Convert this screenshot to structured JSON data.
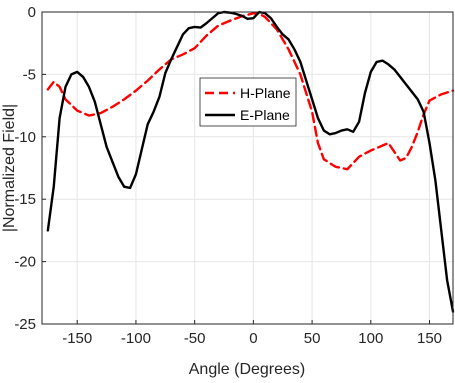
{
  "chart_data": {
    "type": "line",
    "xlabel": "Angle (Degrees)",
    "ylabel": "|Normalized Field|",
    "xlim": [
      -180,
      170
    ],
    "ylim": [
      -25,
      0
    ],
    "xticks": [
      -150,
      -100,
      -50,
      0,
      50,
      100,
      150
    ],
    "yticks": [
      0,
      -5,
      -10,
      -15,
      -20,
      -25
    ],
    "xtick_labels": [
      "-150",
      "-100",
      "-50",
      "0",
      "50",
      "100",
      "150"
    ],
    "ytick_labels": [
      "0",
      "-5",
      "-10",
      "-15",
      "-20",
      "-25"
    ],
    "grid": true,
    "legend_position": "inside-center",
    "series": [
      {
        "name": "H-Plane",
        "color": "#ff0000",
        "dash": "dashed",
        "x": [
          -175,
          -170,
          -165,
          -160,
          -150,
          -140,
          -130,
          -120,
          -110,
          -100,
          -90,
          -80,
          -70,
          -60,
          -50,
          -40,
          -30,
          -20,
          -10,
          0,
          5,
          10,
          20,
          30,
          40,
          50,
          55,
          60,
          70,
          80,
          90,
          100,
          110,
          115,
          120,
          125,
          130,
          135,
          140,
          145,
          150,
          160,
          170
        ],
        "y": [
          -6.2,
          -5.6,
          -6.0,
          -7.0,
          -7.9,
          -8.3,
          -8.1,
          -7.6,
          -7.0,
          -6.3,
          -5.5,
          -4.6,
          -3.8,
          -3.4,
          -2.9,
          -1.9,
          -1.1,
          -0.7,
          -0.35,
          -0.1,
          -0.15,
          -0.4,
          -1.4,
          -3.0,
          -5.0,
          -8.0,
          -10.5,
          -11.8,
          -12.4,
          -12.6,
          -11.6,
          -11.1,
          -10.7,
          -10.5,
          -11.2,
          -11.9,
          -11.7,
          -10.8,
          -9.6,
          -8.2,
          -7.1,
          -6.6,
          -6.3
        ]
      },
      {
        "name": "E-Plane",
        "color": "#000000",
        "dash": "solid",
        "x": [
          -175,
          -170,
          -165,
          -160,
          -155,
          -150,
          -145,
          -140,
          -135,
          -130,
          -125,
          -120,
          -115,
          -110,
          -105,
          -100,
          -95,
          -90,
          -85,
          -80,
          -75,
          -70,
          -65,
          -60,
          -55,
          -50,
          -45,
          -40,
          -35,
          -30,
          -25,
          -20,
          -15,
          -10,
          -5,
          0,
          5,
          10,
          15,
          20,
          25,
          30,
          35,
          40,
          45,
          50,
          55,
          60,
          65,
          70,
          75,
          80,
          85,
          90,
          95,
          100,
          105,
          110,
          115,
          120,
          125,
          130,
          135,
          140,
          145,
          150,
          155,
          160,
          165,
          170
        ],
        "y": [
          -17.5,
          -14.0,
          -8.5,
          -6.0,
          -5.0,
          -4.8,
          -5.2,
          -6.0,
          -7.2,
          -9.0,
          -10.8,
          -12.0,
          -13.2,
          -14.0,
          -14.1,
          -13.0,
          -11.0,
          -9.0,
          -8.0,
          -6.8,
          -4.9,
          -3.8,
          -2.8,
          -1.8,
          -1.3,
          -1.2,
          -1.25,
          -0.9,
          -0.5,
          -0.1,
          0.0,
          -0.05,
          -0.15,
          -0.3,
          -0.55,
          -0.5,
          0.0,
          -0.1,
          -0.5,
          -1.2,
          -1.8,
          -2.2,
          -3.0,
          -4.0,
          -5.5,
          -7.0,
          -8.5,
          -9.5,
          -9.8,
          -9.7,
          -9.5,
          -9.4,
          -9.6,
          -8.8,
          -6.5,
          -4.8,
          -4.0,
          -3.9,
          -4.2,
          -4.6,
          -5.2,
          -5.8,
          -6.4,
          -7.0,
          -8.0,
          -10.5,
          -13.5,
          -17.5,
          -21.5,
          -24.0
        ]
      }
    ]
  }
}
